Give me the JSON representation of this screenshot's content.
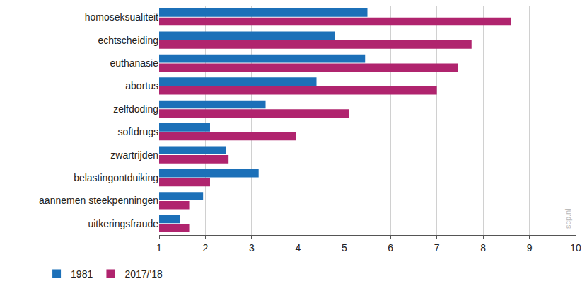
{
  "chart_data": {
    "type": "bar",
    "orientation": "horizontal",
    "categories": [
      "homoseksualiteit",
      "echtscheiding",
      "euthanasie",
      "abortus",
      "zelfdoding",
      "softdrugs",
      "zwartrijden",
      "belastingontduiking",
      "aannemen steekpenningen",
      "uitkeringsfraude"
    ],
    "series": [
      {
        "name": "1981",
        "color": "#1c70b8",
        "values": [
          5.5,
          4.8,
          5.45,
          4.4,
          3.3,
          2.1,
          2.45,
          3.15,
          1.95,
          1.45
        ]
      },
      {
        "name": "2017/'18",
        "color": "#b0246e",
        "values": [
          8.6,
          7.75,
          7.45,
          7.0,
          5.1,
          3.95,
          2.5,
          2.1,
          1.65,
          1.65
        ]
      }
    ],
    "xlim": [
      1,
      10
    ],
    "xticks": [
      1,
      2,
      3,
      4,
      5,
      6,
      7,
      8,
      9,
      10
    ],
    "grid": true,
    "legend": "bottom left",
    "annotations": [
      "scp.nl"
    ]
  }
}
